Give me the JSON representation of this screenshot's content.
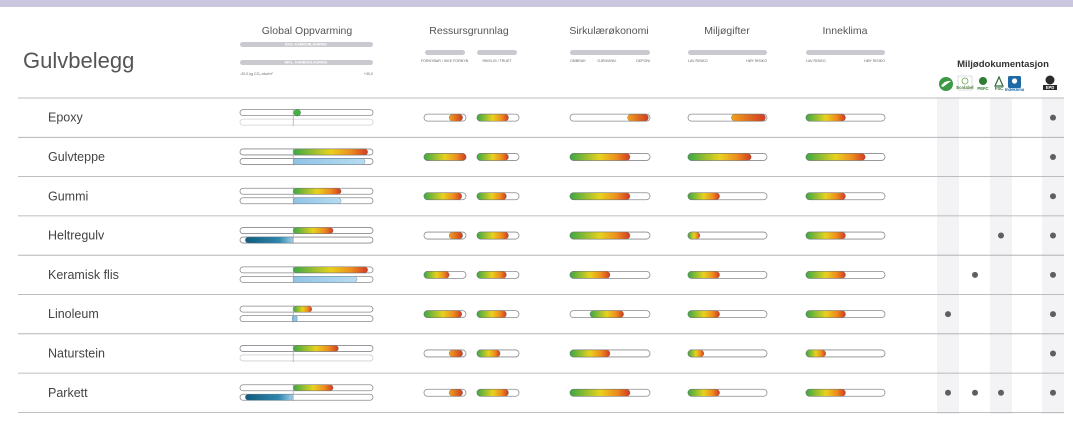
{
  "title": "Gulvbelegg",
  "columns": {
    "global": "Global Oppvarming",
    "ressurs": "Ressursgrunnlag",
    "sirkular": "Sirkulærøkonomi",
    "miljogift": "Miljøgifter",
    "inneklima": "Inneklima",
    "miljodok": "Miljødokumentasjon"
  },
  "sublabels": {
    "global_bar1": "EKS. KARBONLAGRING",
    "global_bar2": "INKL. KARBONLAGRING",
    "global_axis_min": "-20,0 kg CO₂-ekv/m²",
    "global_axis_max": "+30,0",
    "ressurs_a": "FORNYBAR / IKKE FORNYB.",
    "ressurs_b": "RIKELIG / TRUET",
    "sirkular_1": "OMBRUK",
    "sirkular_2": "GJENVINN.",
    "sirkular_3": "DEPONI",
    "miljogift_low": "LAV RISIKO",
    "miljogift_high": "HØY RISIKO",
    "inneklima_low": "LAV RISIKO",
    "inneklima_high": "HØY RISIKO"
  },
  "logos": [
    {
      "icon": "nordic-swan-icon",
      "text": ""
    },
    {
      "icon": "eu-ecolabel-icon",
      "text": "Ecolabel"
    },
    {
      "icon": "pefc-icon",
      "text": "PEFC"
    },
    {
      "icon": "fsc-icon",
      "text": "FSC"
    },
    {
      "icon": "indoor-climate-icon",
      "text": "Indeklima"
    },
    {
      "icon": "epd-icon",
      "text": "EPD"
    }
  ],
  "colors": {
    "green": "#45b045",
    "yellow": "#e8d21e",
    "orange": "#ee8c1e",
    "red": "#cf3b22",
    "blue_light": "#a9d2ec",
    "blue_dark": "#1f6f94",
    "track": "#c9c9cf",
    "dot": "#5f5f5f",
    "stripe": "#f3f3f5"
  },
  "chart_data": {
    "type": "table",
    "title": "Gulvbelegg",
    "global_axis": {
      "min": -20.0,
      "max": 30.0,
      "unit": "kg CO₂-ekv/m²"
    },
    "rows": [
      {
        "name": "Epoxy",
        "global_excl": [
          0.0,
          1.5
        ],
        "global_incl": null,
        "ressurs_a": 0.45,
        "ressurs_b": 0.75,
        "sirkular": 0.4,
        "miljogift": 0.55,
        "inneklima": 0.5,
        "eco": [
          false,
          false,
          false,
          false,
          true
        ]
      },
      {
        "name": "Gulvteppe",
        "global_excl": [
          0.0,
          28.0
        ],
        "global_incl": [
          0.0,
          27.0
        ],
        "ressurs_a": 1.0,
        "ressurs_b": 0.75,
        "sirkular": 0.75,
        "miljogift": 0.8,
        "inneklima": 0.75,
        "eco": [
          false,
          false,
          false,
          false,
          true
        ]
      },
      {
        "name": "Gummi",
        "global_excl": [
          0.0,
          18.0
        ],
        "global_incl": [
          0.0,
          18.0
        ],
        "ressurs_a": 0.9,
        "ressurs_b": 0.7,
        "sirkular": 0.75,
        "miljogift": 0.4,
        "inneklima": 0.5,
        "eco": [
          false,
          false,
          false,
          false,
          true
        ]
      },
      {
        "name": "Heltregulv",
        "global_excl": [
          0.0,
          15.0
        ],
        "global_incl": [
          -18.0,
          0.0
        ],
        "ressurs_a": 0.4,
        "ressurs_b": 0.75,
        "sirkular": 0.75,
        "miljogift": 0.15,
        "inneklima": 0.5,
        "eco": [
          false,
          false,
          true,
          false,
          true
        ]
      },
      {
        "name": "Keramisk flis",
        "global_excl": [
          0.0,
          28.0
        ],
        "global_incl": [
          0.0,
          24.0
        ],
        "ressurs_a": 0.6,
        "ressurs_b": 0.7,
        "sirkular": 0.5,
        "miljogift": 0.4,
        "inneklima": 0.5,
        "eco": [
          false,
          true,
          false,
          false,
          true
        ]
      },
      {
        "name": "Linoleum",
        "global_excl": [
          0.0,
          7.0
        ],
        "global_incl": [
          0.0,
          1.0
        ],
        "ressurs_a": 0.9,
        "ressurs_b": 0.7,
        "sirkular": 0.5,
        "miljogift": 0.4,
        "inneklima": 0.5,
        "eco": [
          true,
          false,
          false,
          false,
          true
        ]
      },
      {
        "name": "Naturstein",
        "global_excl": [
          0.0,
          17.0
        ],
        "global_incl": null,
        "ressurs_a": 0.45,
        "ressurs_b": 0.55,
        "sirkular": 0.5,
        "miljogift": 0.2,
        "inneklima": 0.25,
        "eco": [
          false,
          false,
          false,
          false,
          true
        ]
      },
      {
        "name": "Parkett",
        "global_excl": [
          0.0,
          15.0
        ],
        "global_incl": [
          -18.0,
          0.0
        ],
        "ressurs_a": 0.4,
        "ressurs_b": 0.75,
        "sirkular": 0.75,
        "miljogift": 0.4,
        "inneklima": 0.5,
        "eco": [
          true,
          true,
          true,
          false,
          true
        ]
      }
    ]
  }
}
